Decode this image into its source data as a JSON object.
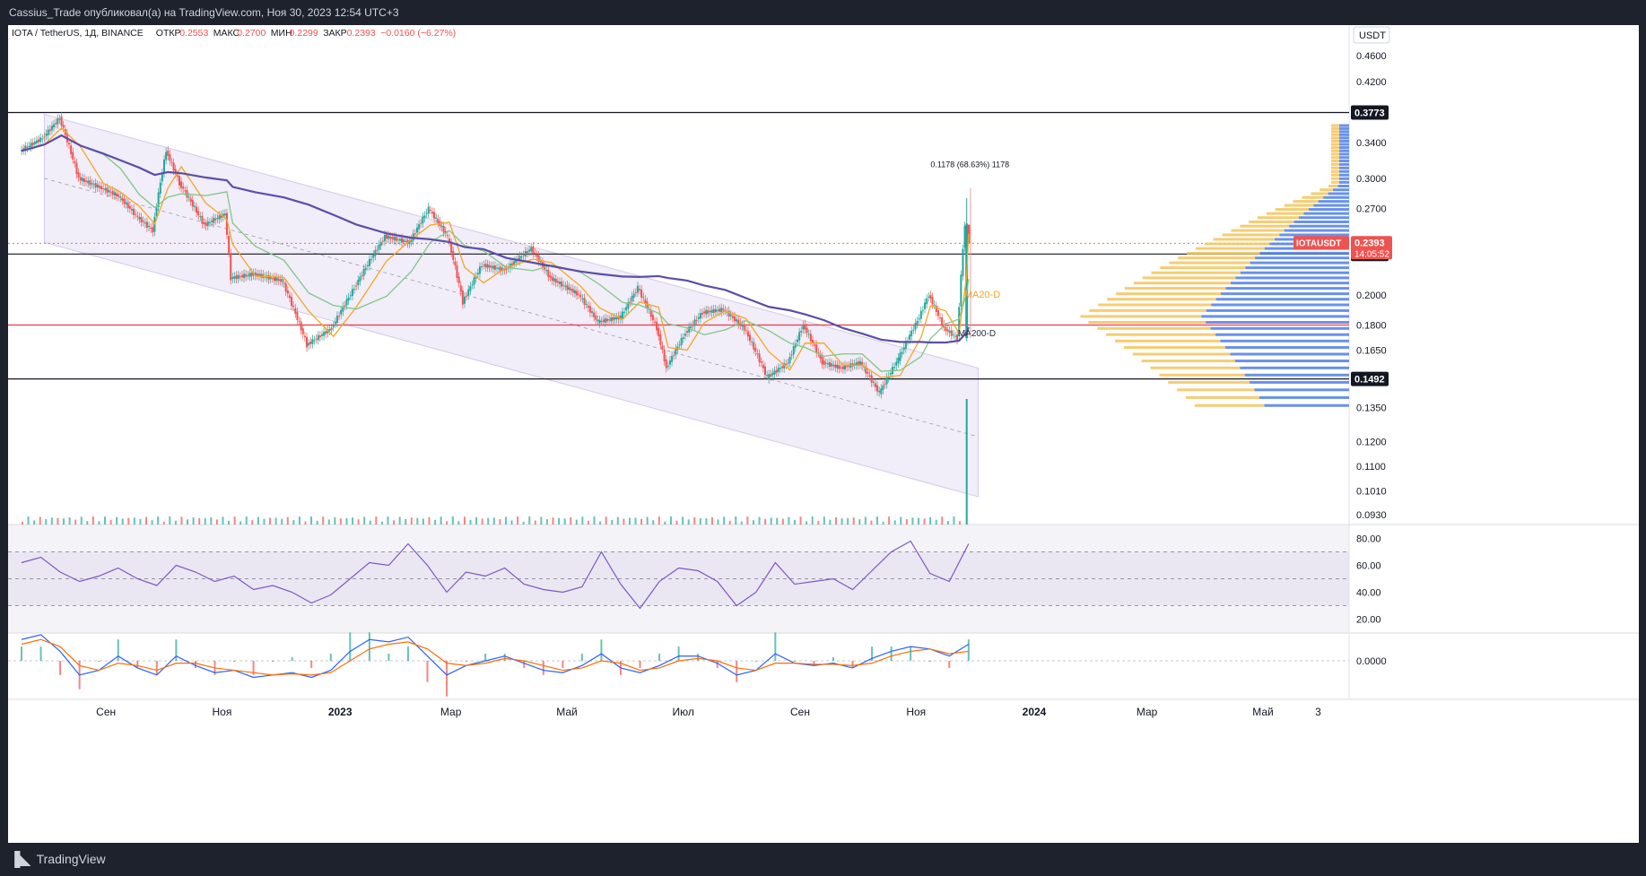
{
  "header": {
    "publish_line": "Cassius_Trade опубликовал(а) на TradingView.com, Ноя 30, 2023 12:54 UTC+3"
  },
  "legend": {
    "symbol": "IOTA / TetherUS, 1Д, BINANCE",
    "open_label": "ОТКР",
    "open": "0.2553",
    "high_label": "МАКС",
    "high": "0.2700",
    "low_label": "МИН",
    "low": "0.2299",
    "close_label": "ЗАКР",
    "close": "0.2393",
    "change": "−0.0160 (−6.27%)"
  },
  "footer": {
    "brand": "TradingView"
  },
  "colors": {
    "up": "#26a69a",
    "down": "#ef5350",
    "ma20": "#f5a623",
    "ma50": "#81c784",
    "ma200": "#5b4ea8",
    "rsi": "#7e57c2",
    "macd": "#2962ff",
    "signal": "#ff6d00",
    "level_red": "#f23645"
  },
  "chart_data": [
    {
      "type": "line",
      "name": "price",
      "currency_label": "USDT",
      "price_axis_ticks": [
        0.46,
        0.42,
        0.34,
        0.3,
        0.27,
        0.2,
        0.18,
        0.165,
        0.135,
        0.12,
        0.11,
        0.101,
        0.093
      ],
      "price_axis_tick_labels": [
        "0.4600",
        "0.4200",
        "0.3400",
        "0.3000",
        "0.2700",
        "0.2000",
        "0.1800",
        "0.1650",
        "0.1350",
        "0.1200",
        "0.1100",
        "0.1010",
        "0.0930"
      ],
      "time_axis_labels": [
        "Сен",
        "Ноя",
        "2023",
        "Мар",
        "Май",
        "Июл",
        "Сен",
        "Ноя",
        "2024",
        "Мар",
        "Май",
        "3"
      ],
      "scale": "log",
      "close_series": [
        {
          "date": "2022-07-20",
          "close": 0.33
        },
        {
          "date": "2022-08-01",
          "close": 0.345
        },
        {
          "date": "2022-08-10",
          "close": 0.37
        },
        {
          "date": "2022-08-20",
          "close": 0.3
        },
        {
          "date": "2022-09-01",
          "close": 0.29
        },
        {
          "date": "2022-09-10",
          "close": 0.282
        },
        {
          "date": "2022-09-20",
          "close": 0.262
        },
        {
          "date": "2022-09-28",
          "close": 0.25
        },
        {
          "date": "2022-10-05",
          "close": 0.33
        },
        {
          "date": "2022-10-12",
          "close": 0.295
        },
        {
          "date": "2022-10-25",
          "close": 0.255
        },
        {
          "date": "2022-11-05",
          "close": 0.265
        },
        {
          "date": "2022-11-08",
          "close": 0.212
        },
        {
          "date": "2022-11-20",
          "close": 0.215
        },
        {
          "date": "2022-12-05",
          "close": 0.21
        },
        {
          "date": "2022-12-18",
          "close": 0.168
        },
        {
          "date": "2022-12-31",
          "close": 0.178
        },
        {
          "date": "2023-01-12",
          "close": 0.205
        },
        {
          "date": "2023-01-28",
          "close": 0.245
        },
        {
          "date": "2023-02-10",
          "close": 0.24
        },
        {
          "date": "2023-02-20",
          "close": 0.27
        },
        {
          "date": "2023-03-02",
          "close": 0.245
        },
        {
          "date": "2023-03-10",
          "close": 0.195
        },
        {
          "date": "2023-03-20",
          "close": 0.222
        },
        {
          "date": "2023-04-01",
          "close": 0.218
        },
        {
          "date": "2023-04-15",
          "close": 0.235
        },
        {
          "date": "2023-04-25",
          "close": 0.212
        },
        {
          "date": "2023-05-10",
          "close": 0.2
        },
        {
          "date": "2023-05-20",
          "close": 0.182
        },
        {
          "date": "2023-06-01",
          "close": 0.185
        },
        {
          "date": "2023-06-10",
          "close": 0.205
        },
        {
          "date": "2023-06-20",
          "close": 0.178
        },
        {
          "date": "2023-06-25",
          "close": 0.155
        },
        {
          "date": "2023-07-05",
          "close": 0.175
        },
        {
          "date": "2023-07-14",
          "close": 0.188
        },
        {
          "date": "2023-07-25",
          "close": 0.19
        },
        {
          "date": "2023-08-05",
          "close": 0.178
        },
        {
          "date": "2023-08-17",
          "close": 0.15
        },
        {
          "date": "2023-08-28",
          "close": 0.158
        },
        {
          "date": "2023-09-05",
          "close": 0.18
        },
        {
          "date": "2023-09-15",
          "close": 0.158
        },
        {
          "date": "2023-09-25",
          "close": 0.155
        },
        {
          "date": "2023-10-05",
          "close": 0.158
        },
        {
          "date": "2023-10-15",
          "close": 0.142
        },
        {
          "date": "2023-10-25",
          "close": 0.16
        },
        {
          "date": "2023-11-05",
          "close": 0.185
        },
        {
          "date": "2023-11-10",
          "close": 0.2
        },
        {
          "date": "2023-11-18",
          "close": 0.178
        },
        {
          "date": "2023-11-25",
          "close": 0.172
        },
        {
          "date": "2023-11-29",
          "close": 0.2553
        },
        {
          "date": "2023-11-30",
          "close": 0.2393
        }
      ],
      "moving_average_labels": [
        "MA20-D",
        "MA200-D"
      ],
      "horizontal_levels": [
        {
          "value": 0.3773,
          "label": "0.3773",
          "color": "black"
        },
        {
          "value": 0.2305,
          "label": "0.2305",
          "color": "black"
        },
        {
          "value": 0.18,
          "color": "red"
        },
        {
          "value": 0.1492,
          "label": "0.1492",
          "color": "black"
        }
      ],
      "last_price_tag": {
        "symbol": "IOTAUSDT",
        "value": "0.2393",
        "countdown": "14:05:52"
      },
      "measure_label": "0.1178 (68.63%) 1178"
    },
    {
      "type": "line",
      "indicator": "RSI",
      "ticks": [
        "80.00",
        "60.00",
        "40.00",
        "20.00"
      ],
      "y": [
        62,
        66,
        55,
        48,
        52,
        58,
        50,
        45,
        60,
        55,
        48,
        52,
        42,
        45,
        40,
        32,
        38,
        50,
        62,
        60,
        76,
        60,
        40,
        55,
        52,
        58,
        46,
        42,
        40,
        44,
        70,
        46,
        28,
        48,
        58,
        56,
        48,
        30,
        40,
        62,
        46,
        48,
        50,
        42,
        56,
        70,
        78,
        54,
        48,
        76
      ],
      "overbought": 70,
      "middle": 50,
      "oversold": 30
    },
    {
      "type": "line",
      "indicator": "MACD",
      "ticks": [
        "0.0000"
      ],
      "macd_line": [
        0.018,
        0.022,
        0.008,
        -0.012,
        -0.008,
        0.004,
        -0.006,
        -0.012,
        0.004,
        -0.004,
        -0.01,
        -0.008,
        -0.014,
        -0.012,
        -0.01,
        -0.014,
        -0.008,
        0.008,
        0.018,
        0.016,
        0.02,
        0.004,
        -0.012,
        -0.004,
        0.0,
        0.004,
        -0.002,
        -0.008,
        -0.01,
        -0.004,
        0.006,
        -0.006,
        -0.01,
        -0.004,
        0.004,
        0.004,
        -0.002,
        -0.012,
        -0.008,
        0.006,
        -0.002,
        -0.004,
        -0.002,
        -0.006,
        0.002,
        0.008,
        0.012,
        0.01,
        0.004,
        0.014
      ],
      "signal_line": [
        0.014,
        0.018,
        0.012,
        -0.004,
        -0.008,
        -0.002,
        -0.004,
        -0.008,
        -0.002,
        -0.002,
        -0.006,
        -0.008,
        -0.01,
        -0.012,
        -0.011,
        -0.012,
        -0.01,
        0.0,
        0.01,
        0.014,
        0.016,
        0.01,
        -0.002,
        -0.004,
        -0.002,
        0.002,
        0.0,
        -0.004,
        -0.008,
        -0.006,
        0.0,
        -0.002,
        -0.008,
        -0.006,
        0.0,
        0.002,
        0.0,
        -0.006,
        -0.008,
        -0.002,
        -0.002,
        -0.003,
        -0.003,
        -0.004,
        -0.002,
        0.004,
        0.008,
        0.01,
        0.006,
        0.008
      ]
    }
  ]
}
